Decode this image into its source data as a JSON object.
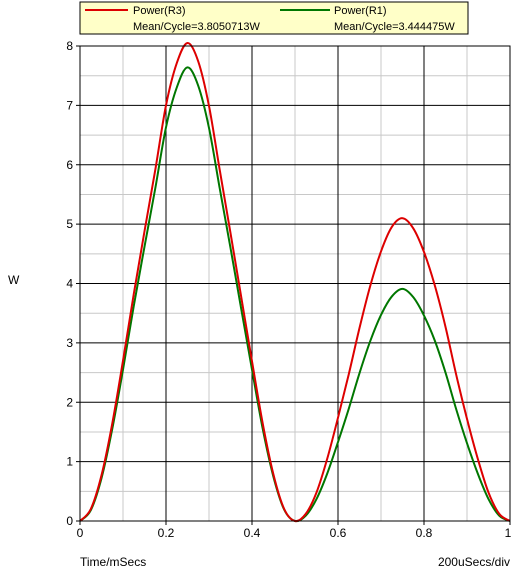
{
  "chart_data": {
    "type": "line",
    "xlabel": "Time/mSecs",
    "ylabel": "W",
    "xdiv_label": "200uSecs/div",
    "xlim": [
      0,
      1
    ],
    "ylim": [
      0,
      8
    ],
    "x_ticks": [
      0,
      0.2,
      0.4,
      0.6,
      0.8,
      1
    ],
    "x_tick_labels": [
      "0",
      "0.2",
      "0.4",
      "0.6",
      "0.8",
      "1"
    ],
    "y_ticks": [
      0,
      1,
      2,
      3,
      4,
      5,
      6,
      7,
      8
    ],
    "y_tick_labels": [
      "0",
      "1",
      "2",
      "3",
      "4",
      "5",
      "6",
      "7",
      "8"
    ],
    "grid": true,
    "legend_position": "top",
    "series": [
      {
        "name": "Power(R3)",
        "mean_label": "Mean/Cycle=3.8050713W",
        "color": "#dd0000",
        "x": [
          0,
          0.025,
          0.05,
          0.075,
          0.1,
          0.125,
          0.15,
          0.175,
          0.2,
          0.225,
          0.25,
          0.275,
          0.3,
          0.325,
          0.35,
          0.375,
          0.4,
          0.425,
          0.45,
          0.475,
          0.5,
          0.525,
          0.55,
          0.575,
          0.6,
          0.625,
          0.65,
          0.675,
          0.7,
          0.725,
          0.75,
          0.775,
          0.8,
          0.825,
          0.85,
          0.875,
          0.9,
          0.925,
          0.95,
          0.975,
          1
        ],
        "y": [
          0,
          0.2,
          0.77,
          1.64,
          2.7,
          3.82,
          4.88,
          5.91,
          7.0,
          7.71,
          8.05,
          7.74,
          6.99,
          5.91,
          4.85,
          3.77,
          2.69,
          1.64,
          0.78,
          0.2,
          0,
          0.12,
          0.48,
          1.05,
          1.74,
          2.47,
          3.25,
          3.96,
          4.54,
          4.95,
          5.1,
          4.93,
          4.53,
          3.97,
          3.27,
          2.46,
          1.72,
          1.05,
          0.48,
          0.12,
          0
        ]
      },
      {
        "name": "Power(R1)",
        "mean_label": "Mean/Cycle=3.444475W",
        "color": "#007700",
        "x": [
          0,
          0.025,
          0.05,
          0.075,
          0.1,
          0.125,
          0.15,
          0.175,
          0.2,
          0.225,
          0.25,
          0.275,
          0.3,
          0.325,
          0.35,
          0.375,
          0.4,
          0.425,
          0.45,
          0.475,
          0.5,
          0.525,
          0.55,
          0.575,
          0.6,
          0.625,
          0.65,
          0.675,
          0.7,
          0.725,
          0.75,
          0.775,
          0.8,
          0.825,
          0.85,
          0.875,
          0.9,
          0.925,
          0.95,
          0.975,
          1
        ],
        "y": [
          0,
          0.18,
          0.72,
          1.55,
          2.55,
          3.62,
          4.62,
          5.6,
          6.63,
          7.3,
          7.64,
          7.33,
          6.62,
          5.6,
          4.6,
          3.57,
          2.55,
          1.55,
          0.74,
          0.19,
          0,
          0.09,
          0.37,
          0.8,
          1.33,
          1.89,
          2.49,
          3.03,
          3.47,
          3.78,
          3.91,
          3.77,
          3.46,
          3.04,
          2.5,
          1.88,
          1.31,
          0.8,
          0.37,
          0.09,
          0
        ]
      }
    ]
  }
}
